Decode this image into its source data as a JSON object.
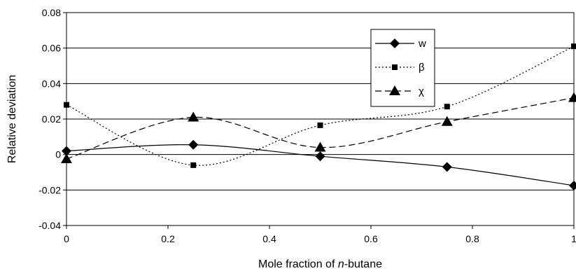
{
  "chart_data": {
    "type": "line",
    "xlabel_prefix": "Mole fraction of ",
    "xlabel_italic": "n",
    "xlabel_suffix": "-butane",
    "ylabel": "Relative deviation",
    "xlim": [
      0,
      1
    ],
    "ylim": [
      -0.04,
      0.08
    ],
    "xticks": [
      "0",
      "0.2",
      "0.4",
      "0.6",
      "0.8",
      "1"
    ],
    "yticks": [
      "0.08",
      "0.06",
      "0.04",
      "0.02",
      "0",
      "-0.02",
      "-0.04"
    ],
    "grid": "horizontal",
    "legend_position": "top-right",
    "x": [
      0,
      0.25,
      0.5,
      0.75,
      1
    ],
    "series": [
      {
        "name": "w",
        "marker": "diamond",
        "line": "solid",
        "values": [
          0.002,
          0.0055,
          -0.001,
          -0.007,
          -0.0175
        ]
      },
      {
        "name": "β",
        "marker": "square",
        "line": "dotted",
        "values": [
          0.028,
          -0.006,
          0.0165,
          0.027,
          0.061
        ]
      },
      {
        "name": "χ",
        "marker": "triangle",
        "line": "dashed",
        "values": [
          -0.0025,
          0.021,
          0.004,
          0.0185,
          0.032
        ]
      }
    ]
  }
}
